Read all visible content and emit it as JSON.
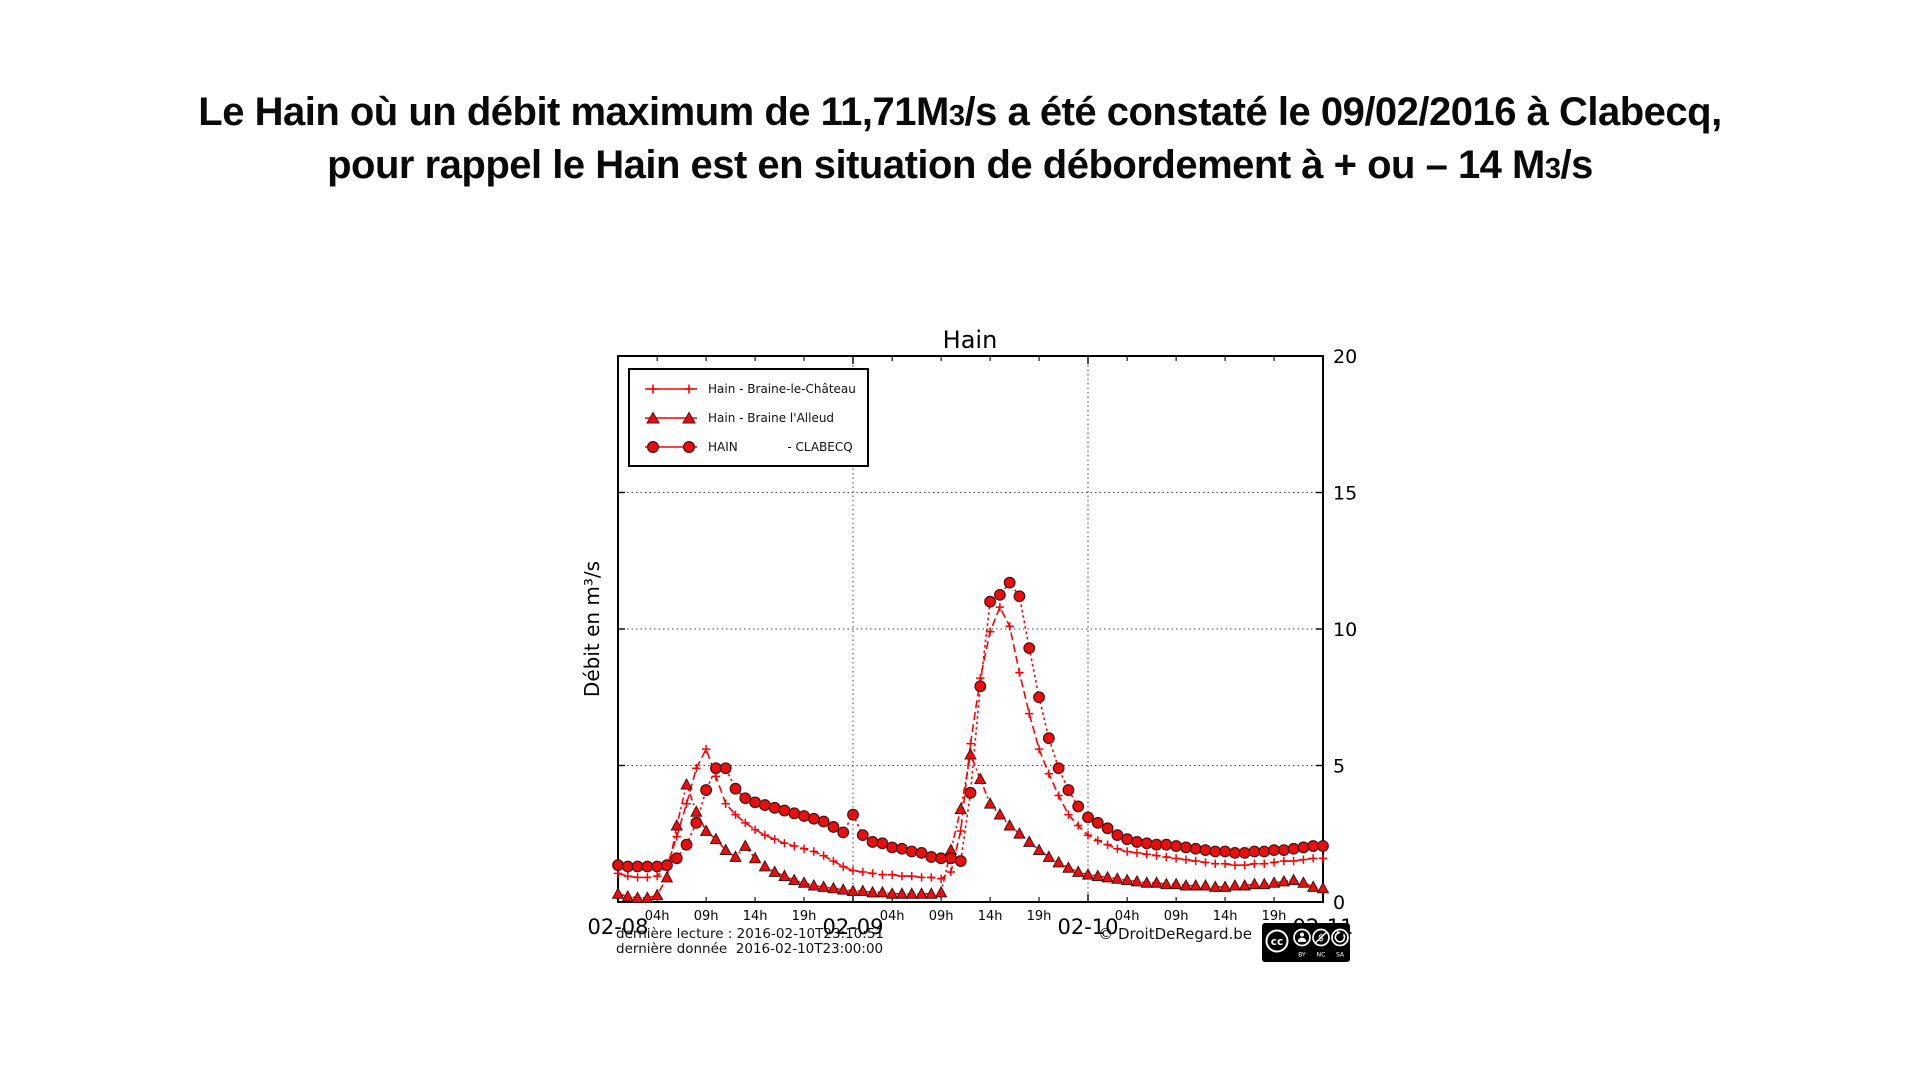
{
  "headline": {
    "line1_pre": "Le Hain où un débit maximum de 11,71M",
    "line1_small": "3",
    "line1_post": "/s a été constaté le 09/02/2016 à Clabecq,",
    "line2_pre": "pour rappel le Hain est en situation de débordement à + ou – 14 M",
    "line2_small": "3",
    "line2_post": "/s"
  },
  "chart": {
    "title": "Hain",
    "ylabel": "Débit en m³/s",
    "y_ticks": [
      0,
      5,
      10,
      15,
      20
    ],
    "day_labels": [
      "02-08",
      "02-09",
      "02-10",
      "02-11"
    ],
    "hour_labels": [
      "04h",
      "09h",
      "14h",
      "19h"
    ],
    "hour_offsets": [
      4,
      9,
      14,
      19
    ],
    "grid_day_indices": [
      1,
      2
    ],
    "grid_y_values": [
      5,
      10,
      15
    ],
    "legend": [
      {
        "label": "Hain - Braine-le-Château",
        "marker": "plus"
      },
      {
        "label": "Hain - Braine l'Alleud",
        "marker": "triangle"
      },
      {
        "label": "HAIN             - CLABECQ",
        "marker": "circle"
      }
    ],
    "colors": {
      "line": "#ff0000",
      "marker_fill": "#e90f0f",
      "marker_edge": "#4a1010",
      "grid": "#444444",
      "frame": "#000000"
    }
  },
  "footer": {
    "line1": "dernière lecture : 2016-02-10T23:10:51",
    "line2": "dernière donnée  2016-02-10T23:00:00",
    "copyright": "© DroitDeRegard.be",
    "cc_logo": "cc",
    "cc_labels": [
      "BY",
      "NC",
      "SA"
    ]
  },
  "chart_data": {
    "type": "line",
    "title": "Hain",
    "ylabel": "Débit en m³/s",
    "ylim": [
      0,
      20
    ],
    "x_unit": "hours since 2016-02-08 00:00",
    "x_range": [
      0,
      72
    ],
    "x_step": 1,
    "grid": "dotted at y=5,10,15 and at day boundaries 02-09, 02-10",
    "legend_position": "upper left",
    "series": [
      {
        "name": "Hain - Braine-le-Château",
        "marker": "plus",
        "linestyle": "dashed",
        "values": [
          1.05,
          0.95,
          0.9,
          0.9,
          0.95,
          1.3,
          2.4,
          3.6,
          4.9,
          5.6,
          4.6,
          3.6,
          3.2,
          2.9,
          2.65,
          2.45,
          2.3,
          2.15,
          2.05,
          1.95,
          1.85,
          1.7,
          1.5,
          1.3,
          1.15,
          1.1,
          1.05,
          1.0,
          1.0,
          0.95,
          0.95,
          0.9,
          0.9,
          0.85,
          1.1,
          2.6,
          5.8,
          8.2,
          9.9,
          10.8,
          10.1,
          8.4,
          6.9,
          5.6,
          4.7,
          3.9,
          3.2,
          2.8,
          2.45,
          2.25,
          2.1,
          1.95,
          1.85,
          1.8,
          1.75,
          1.7,
          1.65,
          1.6,
          1.55,
          1.5,
          1.45,
          1.4,
          1.4,
          1.35,
          1.35,
          1.4,
          1.4,
          1.45,
          1.5,
          1.5,
          1.55,
          1.6,
          1.6
        ]
      },
      {
        "name": "Hain - Braine l'Alleud",
        "marker": "triangle",
        "linestyle": "dashdot",
        "values": [
          0.3,
          0.2,
          0.15,
          0.15,
          0.25,
          0.9,
          2.8,
          4.3,
          3.3,
          2.6,
          2.3,
          1.9,
          1.65,
          2.05,
          1.6,
          1.3,
          1.1,
          0.95,
          0.8,
          0.7,
          0.6,
          0.55,
          0.5,
          0.45,
          0.4,
          0.4,
          0.35,
          0.35,
          0.3,
          0.3,
          0.3,
          0.3,
          0.3,
          0.35,
          1.9,
          3.4,
          5.4,
          4.5,
          3.6,
          3.2,
          2.8,
          2.5,
          2.2,
          1.9,
          1.65,
          1.45,
          1.25,
          1.1,
          1.0,
          0.95,
          0.9,
          0.85,
          0.8,
          0.75,
          0.7,
          0.7,
          0.65,
          0.65,
          0.6,
          0.6,
          0.6,
          0.55,
          0.55,
          0.6,
          0.6,
          0.65,
          0.65,
          0.7,
          0.75,
          0.8,
          0.7,
          0.55,
          0.5
        ]
      },
      {
        "name": "HAIN - CLABECQ",
        "marker": "circle",
        "linestyle": "dotted",
        "values": [
          1.35,
          1.3,
          1.3,
          1.3,
          1.3,
          1.35,
          1.6,
          2.1,
          2.9,
          4.1,
          4.9,
          4.9,
          4.15,
          3.8,
          3.65,
          3.55,
          3.45,
          3.35,
          3.25,
          3.15,
          3.05,
          2.95,
          2.75,
          2.55,
          3.2,
          2.45,
          2.2,
          2.15,
          2.0,
          1.95,
          1.85,
          1.8,
          1.65,
          1.6,
          1.6,
          1.5,
          4.0,
          7.9,
          11.0,
          11.25,
          11.7,
          11.2,
          9.3,
          7.5,
          6.0,
          4.9,
          4.1,
          3.5,
          3.1,
          2.9,
          2.7,
          2.45,
          2.3,
          2.2,
          2.15,
          2.1,
          2.1,
          2.05,
          2.0,
          1.95,
          1.9,
          1.85,
          1.85,
          1.8,
          1.8,
          1.85,
          1.85,
          1.9,
          1.9,
          1.95,
          2.0,
          2.05,
          2.05
        ]
      }
    ]
  }
}
